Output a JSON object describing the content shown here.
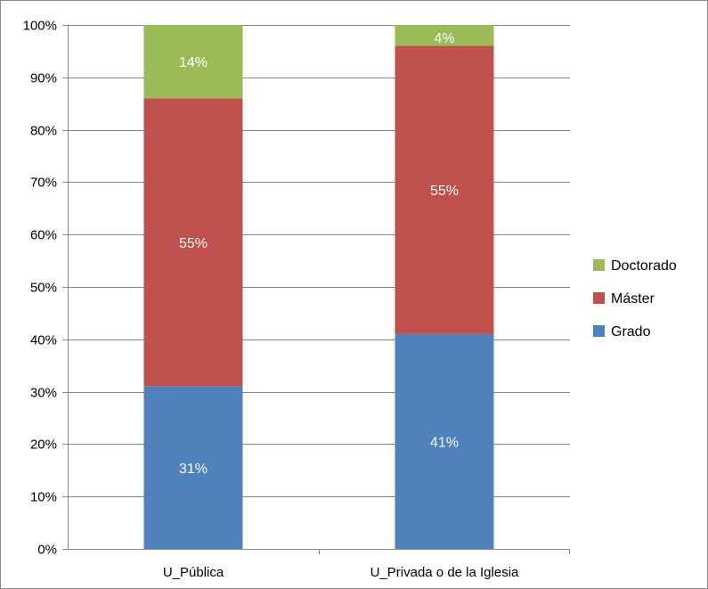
{
  "chart_data": {
    "type": "bar",
    "stacked": true,
    "categories": [
      "U_Pública",
      "U_Privada o de la Iglesia"
    ],
    "series": [
      {
        "name": "Grado",
        "values": [
          31,
          41
        ],
        "labels": [
          "31%",
          "41%"
        ],
        "color": "#4f81bd"
      },
      {
        "name": "Máster",
        "values": [
          55,
          55
        ],
        "labels": [
          "55%",
          "55%"
        ],
        "color": "#c0504d"
      },
      {
        "name": "Doctorado",
        "values": [
          14,
          4
        ],
        "labels": [
          "14%",
          "4%"
        ],
        "color": "#9bbb59"
      }
    ],
    "yticks": [
      "0%",
      "10%",
      "20%",
      "30%",
      "40%",
      "50%",
      "60%",
      "70%",
      "80%",
      "90%",
      "100%"
    ],
    "ylim": [
      0,
      100
    ],
    "grid": true,
    "legend_position": "right",
    "title": "",
    "xlabel": "",
    "ylabel": ""
  }
}
